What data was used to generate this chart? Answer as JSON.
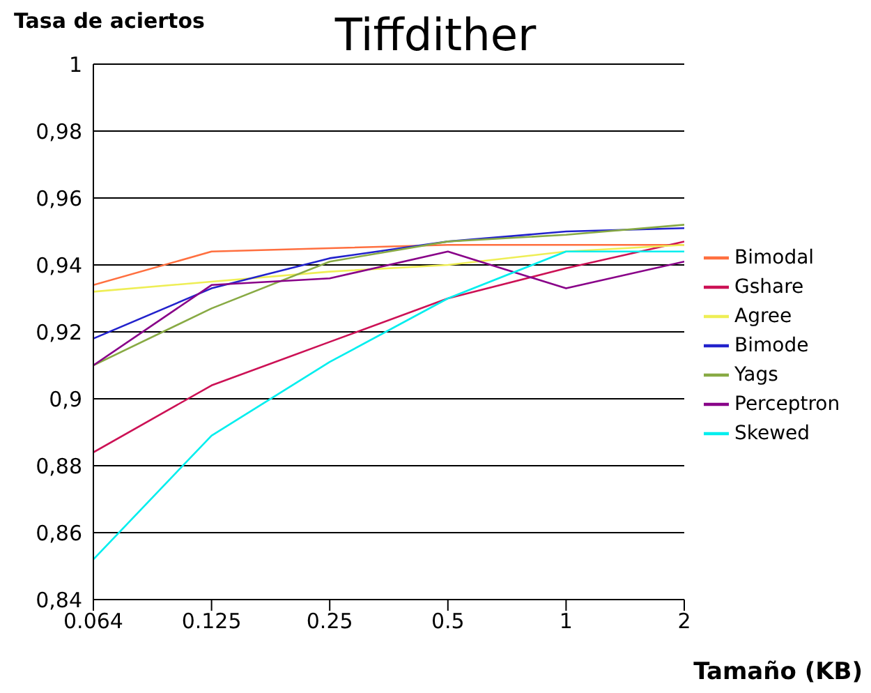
{
  "chart_data": {
    "type": "line",
    "title": "Tiffdither",
    "xlabel": "Tamaño (KB)",
    "ylabel": "Tasa de aciertos",
    "categories": [
      "0.064",
      "0.125",
      "0.25",
      "0.5",
      "1",
      "2"
    ],
    "series": [
      {
        "name": "Bimodal",
        "color": "#ff6f3f",
        "values": [
          0.934,
          0.944,
          0.945,
          0.946,
          0.946,
          0.946
        ]
      },
      {
        "name": "Gshare",
        "color": "#cc1155",
        "values": [
          0.884,
          0.904,
          0.917,
          0.93,
          0.939,
          0.947
        ]
      },
      {
        "name": "Agree",
        "color": "#eeee55",
        "values": [
          0.932,
          0.935,
          0.938,
          0.94,
          0.944,
          0.946
        ]
      },
      {
        "name": "Bimode",
        "color": "#2222cc",
        "values": [
          0.918,
          0.933,
          0.942,
          0.947,
          0.95,
          0.951
        ]
      },
      {
        "name": "Yags",
        "color": "#88aa44",
        "values": [
          0.91,
          0.927,
          0.941,
          0.947,
          0.949,
          0.952
        ]
      },
      {
        "name": "Perceptron",
        "color": "#880088",
        "values": [
          0.91,
          0.934,
          0.936,
          0.944,
          0.933,
          0.941
        ]
      },
      {
        "name": "Skewed",
        "color": "#00eeee",
        "values": [
          0.852,
          0.889,
          0.911,
          0.93,
          0.944,
          0.944
        ]
      }
    ],
    "ylim": [
      0.84,
      1
    ],
    "yticks": [
      {
        "value": 0.84,
        "label": "0,84"
      },
      {
        "value": 0.86,
        "label": "0,86"
      },
      {
        "value": 0.88,
        "label": "0,88"
      },
      {
        "value": 0.9,
        "label": "0,9"
      },
      {
        "value": 0.92,
        "label": "0,92"
      },
      {
        "value": 0.94,
        "label": "0,94"
      },
      {
        "value": 0.96,
        "label": "0,96"
      },
      {
        "value": 0.98,
        "label": "0,98"
      },
      {
        "value": 1,
        "label": "1"
      }
    ],
    "grid": "y",
    "legend": "right",
    "marker": "none",
    "line_style": "solid"
  }
}
